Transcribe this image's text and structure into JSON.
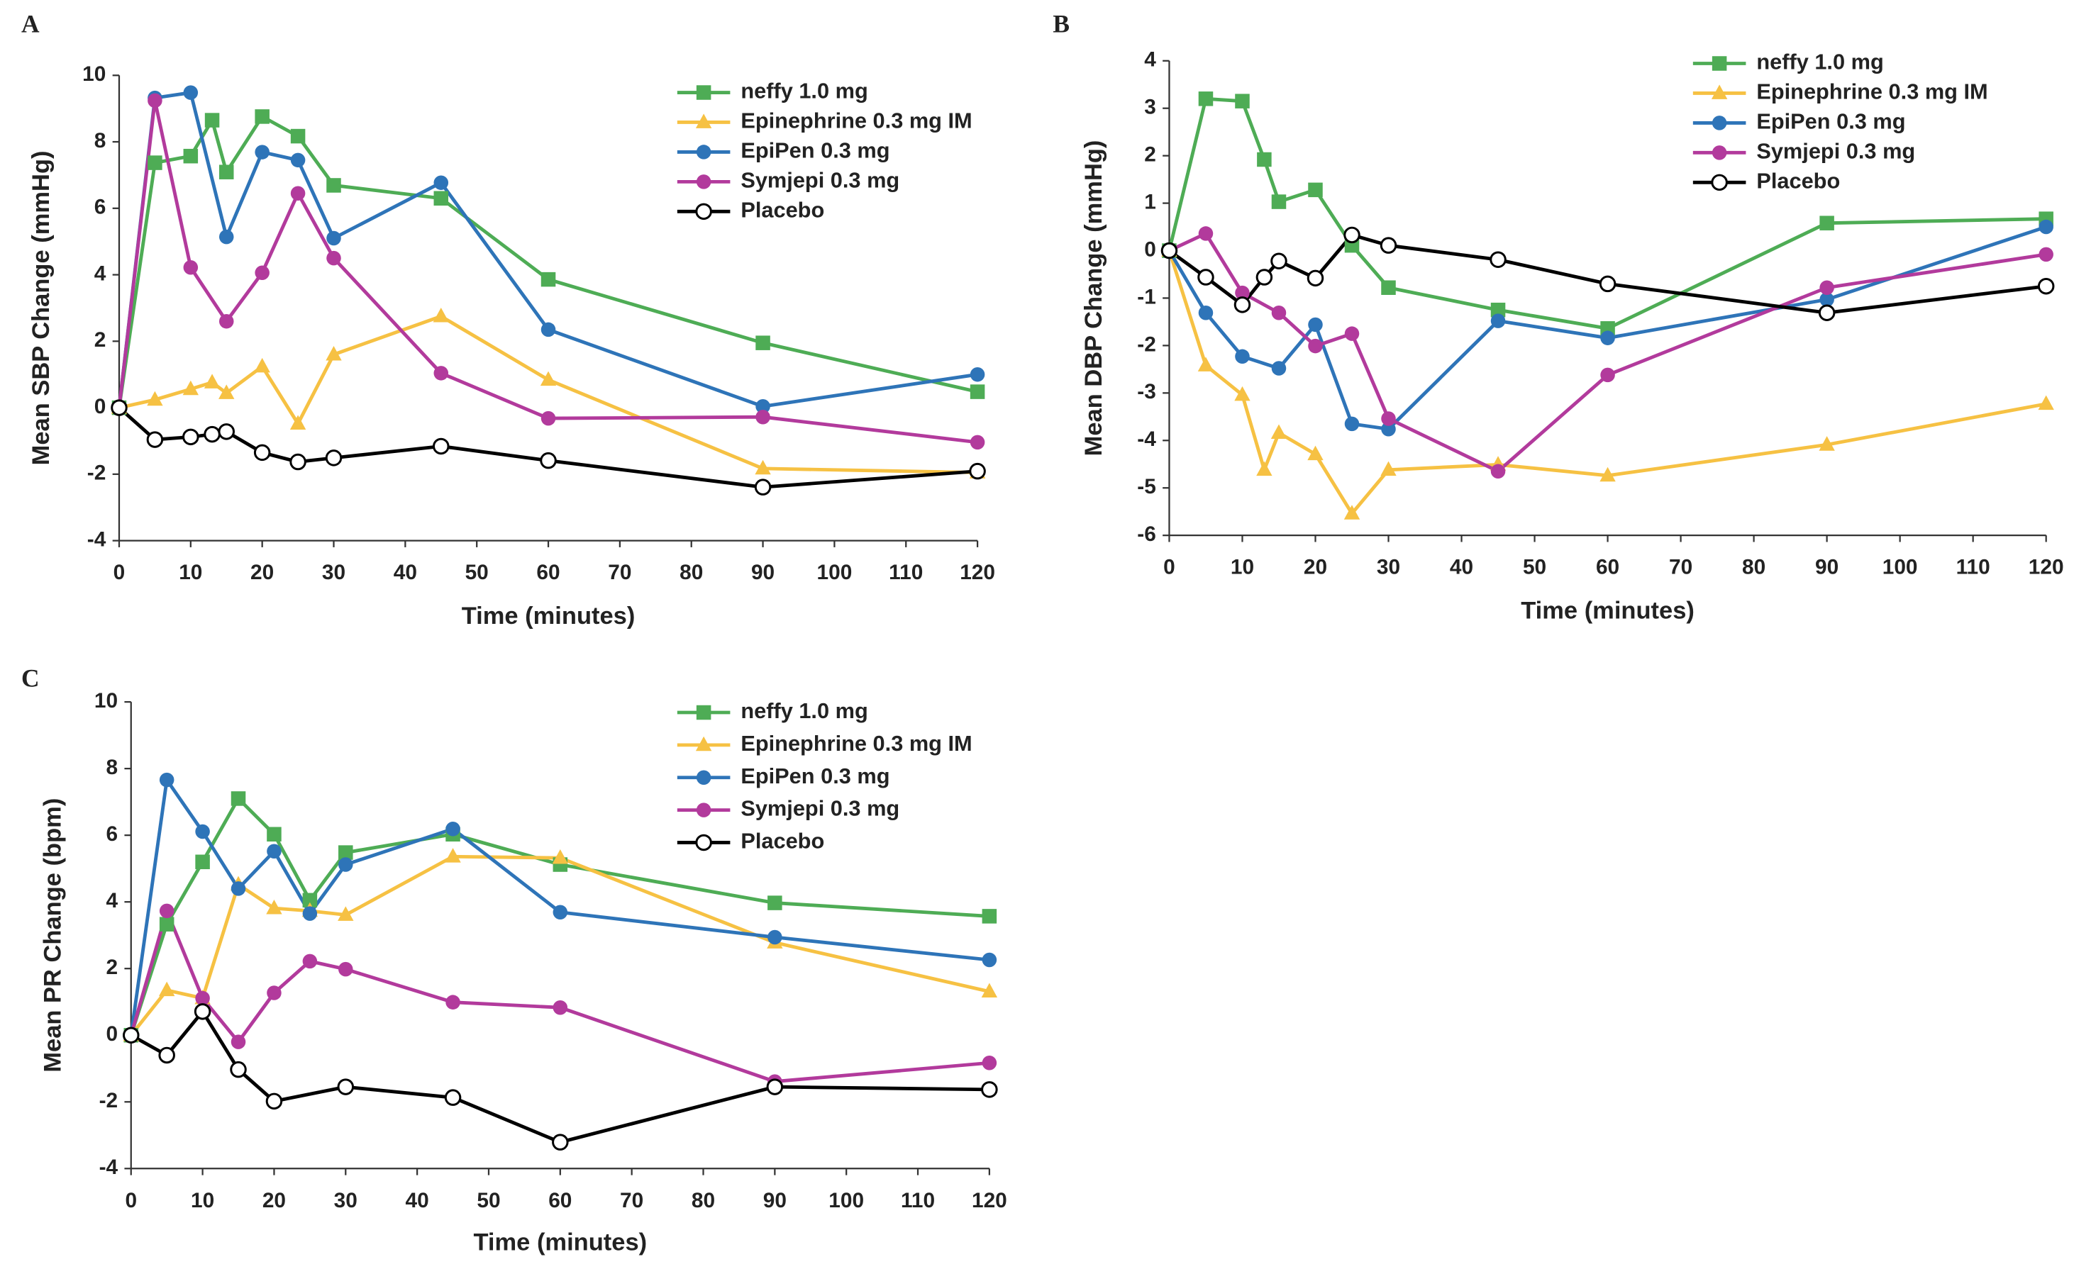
{
  "chart_data": [
    {
      "type": "line",
      "title": "A",
      "x_label": "Time (minutes)",
      "y_label": "Mean SBP Change (mmHg)",
      "xlim": [
        0,
        120
      ],
      "xticks": [
        0,
        10,
        20,
        30,
        40,
        50,
        60,
        70,
        80,
        90,
        100,
        110,
        120
      ],
      "ylim": [
        -4,
        10
      ],
      "yticks": [
        -4,
        -2,
        0,
        2,
        4,
        6,
        8,
        10
      ],
      "grid": false,
      "series": [
        {
          "name": "neffy 1.0 mg",
          "color": "#4EAC55",
          "marker": "square",
          "x": [
            0,
            5,
            10,
            13,
            15,
            20,
            25,
            30,
            45,
            60,
            90,
            120
          ],
          "values": [
            0,
            7.37,
            7.57,
            8.65,
            7.09,
            8.76,
            8.17,
            6.69,
            6.3,
            3.86,
            1.95,
            0.48
          ]
        },
        {
          "name": "Epinephrine 0.3 mg IM",
          "color": "#F6C143",
          "marker": "triangle",
          "x": [
            0,
            5,
            10,
            13,
            15,
            20,
            25,
            30,
            45,
            60,
            90,
            120
          ],
          "values": [
            0,
            0.24,
            0.56,
            0.76,
            0.44,
            1.24,
            -0.48,
            1.6,
            2.75,
            0.84,
            -1.83,
            -1.95
          ]
        },
        {
          "name": "EpiPen 0.3 mg",
          "color": "#2E74B8",
          "marker": "circle",
          "x": [
            0,
            5,
            10,
            15,
            20,
            25,
            30,
            45,
            60,
            90,
            120
          ],
          "values": [
            0,
            9.32,
            9.48,
            5.14,
            7.69,
            7.45,
            5.1,
            6.77,
            2.35,
            0.04,
            1.0
          ]
        },
        {
          "name": "Symjepi 0.3 mg",
          "color": "#B23A9C",
          "marker": "circle",
          "x": [
            0,
            5,
            10,
            15,
            20,
            25,
            30,
            45,
            60,
            90,
            120
          ],
          "values": [
            0,
            9.24,
            4.22,
            2.6,
            4.06,
            6.45,
            4.5,
            1.04,
            -0.32,
            -0.28,
            -1.04
          ]
        },
        {
          "name": "Placebo",
          "color": "#000000",
          "marker": "open-circle",
          "x": [
            0,
            5,
            10,
            13,
            15,
            20,
            25,
            30,
            45,
            60,
            90,
            120
          ],
          "values": [
            0,
            -0.96,
            -0.88,
            -0.8,
            -0.72,
            -1.35,
            -1.63,
            -1.51,
            -1.16,
            -1.59,
            -2.39,
            -1.91
          ]
        }
      ]
    },
    {
      "type": "line",
      "title": "B",
      "x_label": "Time (minutes)",
      "y_label": "Mean DBP Change (mmHg)",
      "xlim": [
        0,
        120
      ],
      "xticks": [
        0,
        10,
        20,
        30,
        40,
        50,
        60,
        70,
        80,
        90,
        100,
        110,
        120
      ],
      "ylim": [
        -6,
        4
      ],
      "yticks": [
        -6,
        -5,
        -4,
        -3,
        -2,
        -1,
        0,
        1,
        2,
        3,
        4
      ],
      "grid": false,
      "series": [
        {
          "name": "neffy 1.0 mg",
          "color": "#4EAC55",
          "marker": "square",
          "x": [
            0,
            5,
            10,
            13,
            15,
            20,
            25,
            30,
            45,
            60,
            90,
            120
          ],
          "values": [
            0,
            3.2,
            3.15,
            1.92,
            1.03,
            1.28,
            0.11,
            -0.78,
            -1.25,
            -1.64,
            0.58,
            0.67
          ]
        },
        {
          "name": "Epinephrine 0.3 mg IM",
          "color": "#F6C143",
          "marker": "triangle",
          "x": [
            0,
            5,
            10,
            13,
            15,
            20,
            25,
            30,
            45,
            60,
            90,
            120
          ],
          "values": [
            0,
            -2.42,
            -3.04,
            -4.62,
            -3.84,
            -4.29,
            -5.54,
            -4.62,
            -4.51,
            -4.74,
            -4.09,
            -3.23
          ]
        },
        {
          "name": "EpiPen 0.3 mg",
          "color": "#2E74B8",
          "marker": "circle",
          "x": [
            0,
            5,
            10,
            15,
            20,
            25,
            30,
            45,
            60,
            90,
            120
          ],
          "values": [
            0,
            -1.31,
            -2.23,
            -2.48,
            -1.56,
            -3.65,
            -3.76,
            -1.48,
            -1.84,
            -1.03,
            0.5
          ]
        },
        {
          "name": "Symjepi 0.3 mg",
          "color": "#B23A9C",
          "marker": "circle",
          "x": [
            0,
            5,
            10,
            15,
            20,
            25,
            30,
            45,
            60,
            90,
            120
          ],
          "values": [
            0,
            0.36,
            -0.89,
            -1.31,
            -2.01,
            -1.75,
            -3.54,
            -4.65,
            -2.62,
            -0.78,
            -0.08
          ]
        },
        {
          "name": "Placebo",
          "color": "#000000",
          "marker": "open-circle",
          "x": [
            0,
            5,
            10,
            13,
            15,
            20,
            25,
            30,
            45,
            60,
            90,
            120
          ],
          "values": [
            0,
            -0.56,
            -1.14,
            -0.56,
            -0.22,
            -0.58,
            0.33,
            0.11,
            -0.19,
            -0.7,
            -1.31,
            -0.75
          ]
        }
      ]
    },
    {
      "type": "line",
      "title": "C",
      "x_label": "Time (minutes)",
      "y_label": "Mean PR Change (bpm)",
      "xlim": [
        0,
        120
      ],
      "xticks": [
        0,
        10,
        20,
        30,
        40,
        50,
        60,
        70,
        80,
        90,
        100,
        110,
        120
      ],
      "ylim": [
        -4,
        10
      ],
      "yticks": [
        -4,
        -2,
        0,
        2,
        4,
        6,
        8,
        10
      ],
      "grid": false,
      "series": [
        {
          "name": "neffy 1.0 mg",
          "color": "#4EAC55",
          "marker": "square",
          "x": [
            0,
            5,
            10,
            15,
            20,
            25,
            30,
            45,
            60,
            90,
            120
          ],
          "values": [
            0,
            3.33,
            5.2,
            7.1,
            6.03,
            4.05,
            5.48,
            6.03,
            5.12,
            3.97,
            3.57
          ]
        },
        {
          "name": "Epinephrine 0.3 mg IM",
          "color": "#F6C143",
          "marker": "triangle",
          "x": [
            0,
            5,
            10,
            15,
            20,
            25,
            30,
            45,
            60,
            90,
            120
          ],
          "values": [
            0,
            1.35,
            1.11,
            4.52,
            3.81,
            3.73,
            3.61,
            5.36,
            5.32,
            2.78,
            1.31
          ]
        },
        {
          "name": "EpiPen 0.3 mg",
          "color": "#2E74B8",
          "marker": "circle",
          "x": [
            0,
            5,
            10,
            15,
            20,
            25,
            30,
            45,
            60,
            90,
            120
          ],
          "values": [
            0,
            7.66,
            6.11,
            4.4,
            5.52,
            3.65,
            5.12,
            6.19,
            3.69,
            2.94,
            2.26
          ]
        },
        {
          "name": "Symjepi 0.3 mg",
          "color": "#B23A9C",
          "marker": "circle",
          "x": [
            0,
            5,
            10,
            15,
            20,
            25,
            30,
            45,
            60,
            90,
            120
          ],
          "values": [
            0,
            3.73,
            1.11,
            -0.2,
            1.27,
            2.22,
            1.98,
            0.99,
            0.83,
            -1.39,
            -0.83
          ]
        },
        {
          "name": "Placebo",
          "color": "#000000",
          "marker": "open-circle",
          "x": [
            0,
            5,
            10,
            15,
            20,
            30,
            45,
            60,
            90,
            120
          ],
          "values": [
            0,
            -0.6,
            0.71,
            -1.03,
            -1.98,
            -1.55,
            -1.87,
            -3.21,
            -1.55,
            -1.63
          ]
        }
      ]
    }
  ]
}
